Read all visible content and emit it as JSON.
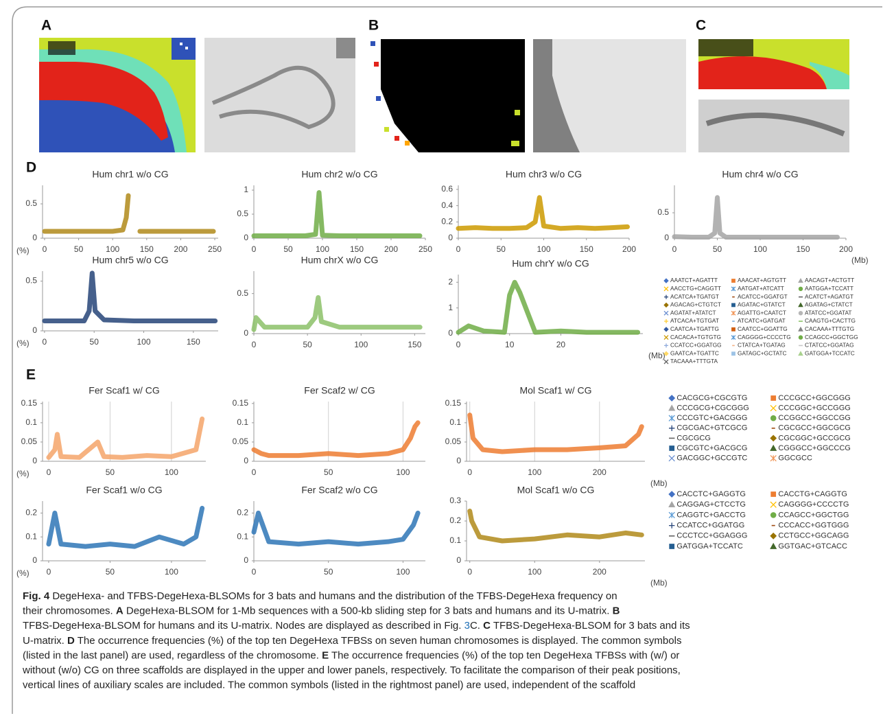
{
  "panels": {
    "A": "A",
    "B": "B",
    "C": "C",
    "D": "D",
    "E": "E"
  },
  "charts_d": [
    {
      "type": "line",
      "title": "Hum chr1 w/o CG",
      "ylabel": "(%)",
      "xlim": [
        -3,
        255
      ],
      "ylim": [
        0,
        0.77
      ],
      "xticks": [
        0,
        50,
        100,
        150,
        200,
        250
      ],
      "yticks": [
        0,
        0.5
      ],
      "color": "#b08a1a",
      "x": [
        0,
        25,
        50,
        75,
        100,
        115,
        120,
        123,
        126,
        140,
        145,
        170,
        200,
        225,
        248
      ],
      "values": [
        0.1,
        0.1,
        0.1,
        0.1,
        0.1,
        0.12,
        0.3,
        0.62,
        null,
        0.1,
        0.1,
        0.1,
        0.1,
        0.1,
        0.1
      ]
    },
    {
      "type": "line",
      "title": "Hum chr2 w/o  CG",
      "xlim": [
        0,
        250
      ],
      "ylim": [
        0,
        1.1
      ],
      "xticks": [
        0,
        50,
        100,
        150,
        200,
        250
      ],
      "yticks": [
        0,
        0.5,
        1
      ],
      "color": "#70ad47",
      "x": [
        0,
        25,
        50,
        75,
        90,
        95,
        100,
        125,
        150,
        175,
        200,
        225,
        242
      ],
      "values": [
        0.05,
        0.05,
        0.05,
        0.05,
        0.08,
        0.95,
        0.06,
        0.05,
        0.05,
        0.05,
        0.05,
        0.05,
        0.05
      ]
    },
    {
      "type": "line",
      "title": "Hum chr3 w/o  CG",
      "xlim": [
        0,
        200
      ],
      "ylim": [
        0,
        0.65
      ],
      "xticks": [
        0,
        50,
        100,
        150,
        200
      ],
      "yticks": [
        0,
        0.2,
        0.4,
        0.6
      ],
      "color": "#cc9a00",
      "x": [
        0,
        20,
        40,
        60,
        80,
        90,
        95,
        100,
        120,
        140,
        160,
        180,
        198
      ],
      "values": [
        0.12,
        0.13,
        0.12,
        0.12,
        0.13,
        0.2,
        0.5,
        0.15,
        0.12,
        0.13,
        0.12,
        0.13,
        0.14
      ]
    },
    {
      "type": "line",
      "title": "Hum chr4 w/o  CG",
      "xlabel": "(Mb)",
      "xlim": [
        0,
        200
      ],
      "ylim": [
        0,
        1.04
      ],
      "xticks": [
        0,
        50,
        100,
        150,
        200
      ],
      "yticks": [
        0,
        0.5
      ],
      "color": "#a5a5a5",
      "x": [
        0,
        20,
        40,
        47,
        50,
        53,
        60,
        90,
        120,
        150,
        190
      ],
      "values": [
        0.03,
        0.02,
        0.02,
        0.1,
        0.8,
        0.1,
        0.02,
        0.02,
        0.02,
        0.02,
        0.02
      ]
    },
    {
      "type": "line",
      "title": "Hum chr5 w/o  CG",
      "ylabel": "(%)",
      "xlim": [
        -2,
        175
      ],
      "ylim": [
        0,
        0.6
      ],
      "xticks": [
        0,
        50,
        100,
        150
      ],
      "yticks": [
        0,
        0.5
      ],
      "color": "#264478",
      "x": [
        0,
        20,
        40,
        45,
        48,
        51,
        60,
        90,
        120,
        150,
        172
      ],
      "values": [
        0.1,
        0.1,
        0.1,
        0.2,
        0.58,
        0.2,
        0.11,
        0.1,
        0.1,
        0.1,
        0.1
      ]
    },
    {
      "type": "line",
      "title": "Hum chrX w/o CG",
      "xlim": [
        0,
        160
      ],
      "ylim": [
        0,
        0.78
      ],
      "xticks": [
        0,
        50,
        100,
        150
      ],
      "yticks": [
        0,
        0.5
      ],
      "color": "#8cc168",
      "x": [
        0,
        2,
        10,
        30,
        50,
        57,
        60,
        63,
        80,
        110,
        140,
        155
      ],
      "values": [
        0.05,
        0.2,
        0.08,
        0.08,
        0.08,
        0.2,
        0.45,
        0.15,
        0.08,
        0.08,
        0.08,
        0.08
      ]
    },
    {
      "type": "line",
      "title": "Hum chrY w/o CG",
      "xlabel": "(Mb)",
      "xlim": [
        0,
        36
      ],
      "ylim": [
        0,
        2.3
      ],
      "xticks": [
        0,
        10,
        20
      ],
      "yticks": [
        0,
        1,
        2
      ],
      "color": "#70ad47",
      "x": [
        0,
        2,
        5,
        9,
        10,
        11,
        12,
        15,
        20,
        25,
        30,
        35
      ],
      "values": [
        0.05,
        0.3,
        0.1,
        0.05,
        1.5,
        2,
        1.6,
        0.05,
        0.1,
        0.05,
        0.05,
        0.05
      ]
    }
  ],
  "charts_e": [
    {
      "type": "line",
      "title": "Fer Scaf1 w/ CG",
      "ylabel": "(%)",
      "xgrid": true,
      "xlim": [
        -5,
        128
      ],
      "ylim": [
        0,
        0.155
      ],
      "xticks": [
        0,
        50,
        100
      ],
      "yticks": [
        0,
        0.05,
        0.1,
        0.15
      ],
      "color": "#f4a46a",
      "x": [
        0,
        5,
        7,
        10,
        25,
        40,
        45,
        60,
        80,
        100,
        120,
        125
      ],
      "values": [
        0.01,
        0.03,
        0.07,
        0.012,
        0.01,
        0.05,
        0.012,
        0.01,
        0.015,
        0.012,
        0.03,
        0.11
      ]
    },
    {
      "type": "line",
      "title": "Fer Scaf2 w/ CG",
      "xgrid": true,
      "xlim": [
        0,
        115
      ],
      "ylim": [
        0,
        0.155
      ],
      "xticks": [
        0,
        50,
        100
      ],
      "yticks": [
        0,
        0.05,
        0.1,
        0.15
      ],
      "color": "#ed7d31",
      "x": [
        0,
        5,
        10,
        30,
        50,
        70,
        90,
        100,
        105,
        108,
        110
      ],
      "values": [
        0.03,
        0.02,
        0.015,
        0.015,
        0.02,
        0.015,
        0.02,
        0.03,
        0.06,
        0.09,
        0.1
      ]
    },
    {
      "type": "line",
      "title": "Mol Scaf1 w/ CG",
      "xlabel": "(Mb)",
      "xgrid": true,
      "xlim": [
        -5,
        270
      ],
      "ylim": [
        0,
        0.155
      ],
      "xticks": [
        0,
        100,
        200
      ],
      "yticks": [
        0,
        0.05,
        0.1,
        0.15
      ],
      "color": "#ed7d31",
      "x": [
        0,
        5,
        20,
        50,
        100,
        150,
        200,
        240,
        260,
        265
      ],
      "values": [
        0.12,
        0.06,
        0.03,
        0.025,
        0.03,
        0.03,
        0.035,
        0.04,
        0.07,
        0.09
      ]
    },
    {
      "type": "line",
      "title": "Fer Scaf1 w/o CG",
      "ylabel": "(%)",
      "xlim": [
        -5,
        128
      ],
      "ylim": [
        0,
        0.25
      ],
      "xticks": [
        0,
        50,
        100
      ],
      "yticks": [
        0,
        0.1,
        0.2
      ],
      "color": "#2e75b6",
      "x": [
        0,
        5,
        10,
        30,
        50,
        70,
        90,
        110,
        120,
        125
      ],
      "values": [
        0.07,
        0.2,
        0.07,
        0.06,
        0.07,
        0.06,
        0.1,
        0.07,
        0.1,
        0.22
      ]
    },
    {
      "type": "line",
      "title": "Fer Scaf2 w/o CG",
      "xlim": [
        0,
        115
      ],
      "ylim": [
        0,
        0.25
      ],
      "xticks": [
        0,
        50,
        100
      ],
      "yticks": [
        0,
        0.1,
        0.2
      ],
      "color": "#2e75b6",
      "x": [
        0,
        3,
        10,
        30,
        50,
        70,
        90,
        100,
        107,
        110
      ],
      "values": [
        0.12,
        0.2,
        0.08,
        0.07,
        0.08,
        0.07,
        0.08,
        0.09,
        0.15,
        0.2
      ]
    },
    {
      "type": "line",
      "title": "Mol Scaf1 w/o CG",
      "xlabel": "(Mb)",
      "xlim": [
        -5,
        270
      ],
      "ylim": [
        0,
        0.3
      ],
      "xticks": [
        0,
        100,
        200
      ],
      "yticks": [
        0,
        0.1,
        0.2,
        0.3
      ],
      "color": "#b08a1a",
      "x": [
        0,
        3,
        15,
        50,
        100,
        150,
        200,
        240,
        265
      ],
      "values": [
        0.25,
        0.2,
        0.12,
        0.1,
        0.11,
        0.13,
        0.12,
        0.14,
        0.13
      ]
    }
  ],
  "legend_d": [
    {
      "name": "AAATCT+AGATTT",
      "color": "#4472c4"
    },
    {
      "name": "AAACAT+AGTGTT",
      "color": "#ed7d31"
    },
    {
      "name": "AACAGT+ACTGTT",
      "color": "#a5a5a5"
    },
    {
      "name": "AACCTG+CAGGTT",
      "color": "#ffc000"
    },
    {
      "name": "AATGAT+ATCATT",
      "color": "#5b9bd5"
    },
    {
      "name": "AATGGA+TCCATT",
      "color": "#70ad47"
    },
    {
      "name": "ACATCA+TGATGT",
      "color": "#264478"
    },
    {
      "name": "ACATCC+GGATGT",
      "color": "#9e480e"
    },
    {
      "name": "ACATCT+AGATGT",
      "color": "#636363"
    },
    {
      "name": "AGACAG+CTGTCT",
      "color": "#997300"
    },
    {
      "name": "AGATAC+GTATCT",
      "color": "#255e91"
    },
    {
      "name": "AGATAG+CTATCT",
      "color": "#43682b"
    },
    {
      "name": "AGATAT+ATATCT",
      "color": "#698ed0"
    },
    {
      "name": "AGATTG+CAATCT",
      "color": "#f1975a"
    },
    {
      "name": "ATATCC+GGATAT",
      "color": "#b7b7b7"
    },
    {
      "name": "ATCACA+TGTGAT",
      "color": "#ffcd33"
    },
    {
      "name": "ATCATC+GATGAT",
      "color": "#7cafdd"
    },
    {
      "name": "CAAGTG+CACTTG",
      "color": "#8cc168"
    },
    {
      "name": "CAATCA+TGATTG",
      "color": "#335aa1"
    },
    {
      "name": "CAATCC+GGATTG",
      "color": "#d26012"
    },
    {
      "name": "CACAAA+TTTGTG",
      "color": "#848484"
    },
    {
      "name": "CACACA+TGTGTG",
      "color": "#cc9a00"
    },
    {
      "name": "CAGGGG+CCCCTG",
      "color": "#5b9bd5"
    },
    {
      "name": "CCAGCC+GGCTGG",
      "color": "#70ad47"
    },
    {
      "name": "CCATCC+GGATGG",
      "color": "#8faadc"
    },
    {
      "name": "CTATCA+TGATAG",
      "color": "#f4b183"
    },
    {
      "name": "CTATCC+GGATAG",
      "color": "#c9c9c9"
    },
    {
      "name": "GAATCA+TGATTC",
      "color": "#ffd966"
    },
    {
      "name": "GATAGC+GCTATC",
      "color": "#9dc3e6"
    },
    {
      "name": "GATGGA+TCCATC",
      "color": "#a9d18e"
    },
    {
      "name": "TACAAA+TTTGTA",
      "color": "#636363"
    }
  ],
  "legend_e1": [
    {
      "name": "CACGCG+CGCGTG",
      "color": "#4472c4"
    },
    {
      "name": "CCCGCC+GGCGGG",
      "color": "#ed7d31"
    },
    {
      "name": "CCCGCG+CGCGGG",
      "color": "#a5a5a5"
    },
    {
      "name": "CCCGGC+GCCGGG",
      "color": "#ffc000"
    },
    {
      "name": "CCCGTC+GACGGG",
      "color": "#5b9bd5"
    },
    {
      "name": "CCGGCC+GGCCGG",
      "color": "#70ad47"
    },
    {
      "name": "CGCGAC+GTCGCG",
      "color": "#264478"
    },
    {
      "name": "CGCGCC+GGCGCG",
      "color": "#9e480e"
    },
    {
      "name": "CGCGCG",
      "color": "#636363"
    },
    {
      "name": "CGCGGC+GCCGCG",
      "color": "#997300"
    },
    {
      "name": "CGCGTC+GACGCG",
      "color": "#255e91"
    },
    {
      "name": "CGGGCC+GGCCCG",
      "color": "#43682b"
    },
    {
      "name": "GACGGC+GCCGTC",
      "color": "#698ed0"
    },
    {
      "name": "GGCGCC",
      "color": "#f1975a"
    }
  ],
  "legend_e2": [
    {
      "name": "CACCTC+GAGGTG",
      "color": "#4472c4"
    },
    {
      "name": "CACCTG+CAGGTG",
      "color": "#ed7d31"
    },
    {
      "name": "CAGGAG+CTCCTG",
      "color": "#a5a5a5"
    },
    {
      "name": "CAGGGG+CCCCTG",
      "color": "#ffc000"
    },
    {
      "name": "CAGGTC+GACCTG",
      "color": "#5b9bd5"
    },
    {
      "name": "CCAGCC+GGCTGG",
      "color": "#70ad47"
    },
    {
      "name": "CCATCC+GGATGG",
      "color": "#264478"
    },
    {
      "name": "CCCACC+GGTGGG",
      "color": "#9e480e"
    },
    {
      "name": "CCCTCC+GGAGGG",
      "color": "#636363"
    },
    {
      "name": "CCTGCC+GGCAGG",
      "color": "#997300"
    },
    {
      "name": "GATGGA+TCCATC",
      "color": "#255e91"
    },
    {
      "name": "GGTGAC+GTCACC",
      "color": "#43682b"
    }
  ],
  "caption": {
    "lines": [
      [
        {
          "text": "Fig. 4",
          "bold": true
        },
        {
          "text": "  DegeHexa- and TFBS-DegeHexa-BLSOMs for 3 bats and humans and the distribution of the TFBS-DegeHexa frequency on"
        }
      ],
      [
        {
          "text": "their chromosomes. "
        },
        {
          "text": "A",
          "bold": true
        },
        {
          "text": " DegeHexa-BLSOM for 1-Mb sequences with a 500-kb sliding step for 3 bats and humans and its U-matrix. "
        },
        {
          "text": "B",
          "bold": true
        }
      ],
      [
        {
          "text": "TFBS-DegeHexa-BLSOM for humans and its U-matrix. Nodes are displayed as described in Fig. "
        },
        {
          "text": "3",
          "link": true
        },
        {
          "text": "C. "
        },
        {
          "text": "C",
          "bold": true
        },
        {
          "text": " TFBS-DegeHexa-BLSOM for 3 bats and its"
        }
      ],
      [
        {
          "text": "U-matrix. "
        },
        {
          "text": "D",
          "bold": true
        },
        {
          "text": " The occurrence frequencies (%) of the top ten DegeHexa TFBSs on seven human chromosomes is displayed. The common symbols"
        }
      ],
      [
        {
          "text": "(listed in the last panel) are used, regardless of the chromosome. "
        },
        {
          "text": "E",
          "bold": true
        },
        {
          "text": " The occurrence frequencies (%) of the top ten DegeHexa TFBSs with (w/) or"
        }
      ],
      [
        {
          "text": "without (w/o) CG on three scaffolds are displayed in the upper and lower panels, respectively. To facilitate the comparison of their peak positions,"
        }
      ],
      [
        {
          "text": "vertical lines of auxiliary scales are included. The common symbols (listed in the rightmost panel) are used, independent of the scaffold"
        }
      ]
    ]
  }
}
